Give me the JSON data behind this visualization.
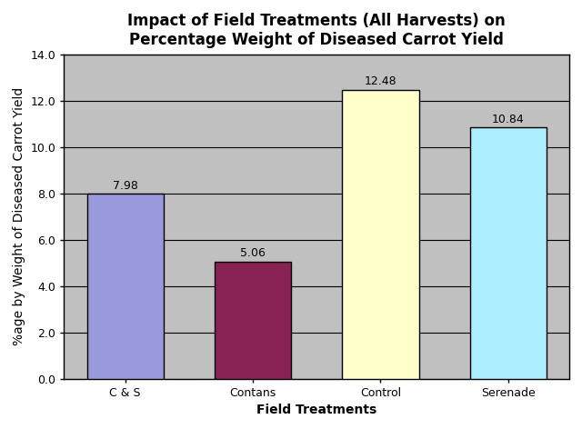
{
  "categories": [
    "C & S",
    "Contans",
    "Control",
    "Serenade"
  ],
  "values": [
    7.98,
    5.06,
    12.48,
    10.84
  ],
  "bar_colors": [
    "#9999dd",
    "#882255",
    "#ffffcc",
    "#aaeeff"
  ],
  "bar_edgecolors": [
    "#000000",
    "#000000",
    "#000000",
    "#000000"
  ],
  "title_line1": "Impact of Field Treatments (All Harvests) on",
  "title_line2": "Percentage Weight of Diseased Carrot Yield",
  "xlabel": "Field Treatments",
  "ylabel": "%age by Weight of Diseased Carrot Yield",
  "ylim": [
    0,
    14.0
  ],
  "yticks": [
    0.0,
    2.0,
    4.0,
    6.0,
    8.0,
    10.0,
    12.0,
    14.0
  ],
  "figure_bg_color": "#ffffff",
  "plot_bg_color": "#c0c0c0",
  "title_fontsize": 12,
  "axis_label_fontsize": 10,
  "tick_fontsize": 9,
  "bar_label_fontsize": 9,
  "grid_color": "#000000",
  "bar_width": 0.6
}
